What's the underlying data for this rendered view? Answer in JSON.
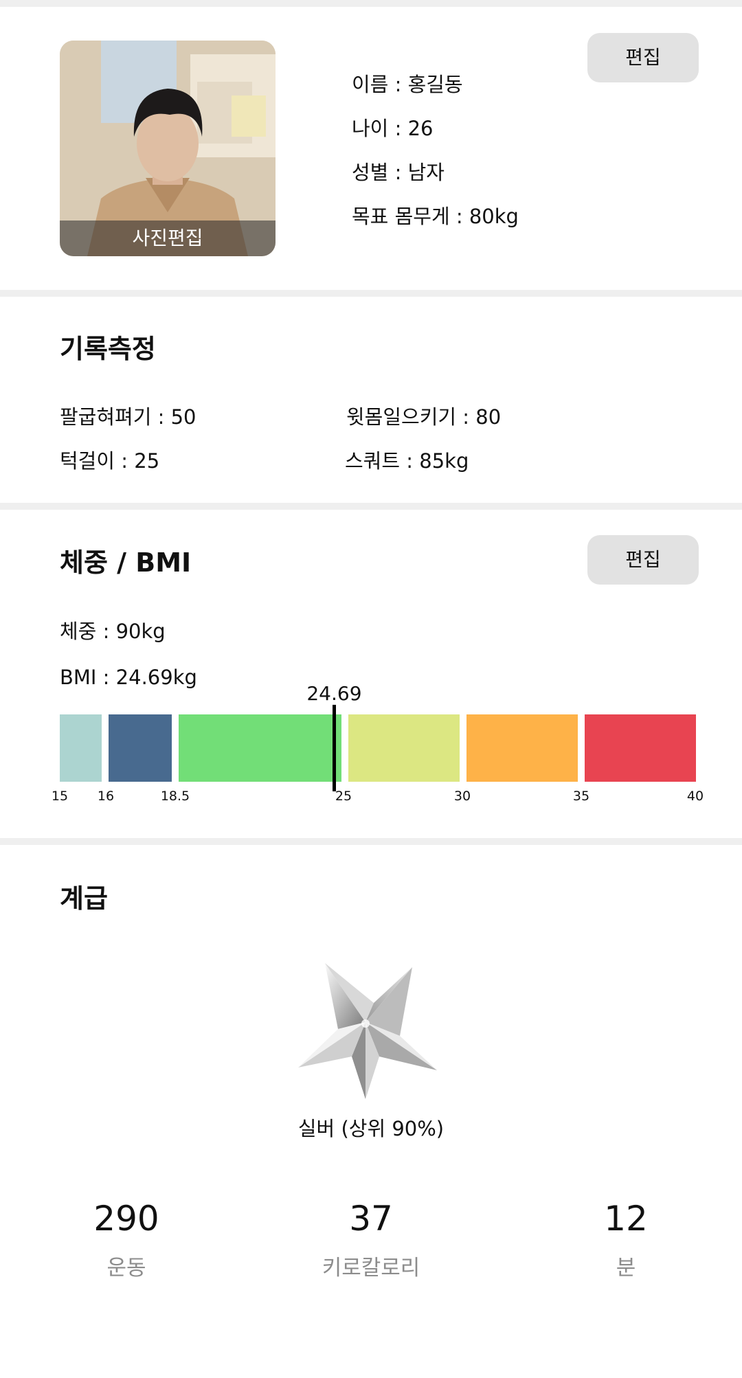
{
  "profile": {
    "photo_edit_label": "사진편집",
    "edit_label": "편집",
    "name_line": "이름 : 홍길동",
    "age_line": "나이 : 26",
    "gender_line": "성별 : 남자",
    "goal_line": "목표 몸무게 : 80kg"
  },
  "records": {
    "title": "기록측정",
    "pushups": "팔굽혀펴기 : 50",
    "situps": "윗몸일으키기 : 80",
    "pullups": "턱걸이 : 25",
    "squat": "스쿼트 : 85kg"
  },
  "weight_bmi": {
    "title": "체중 / BMI",
    "edit_label": "편집",
    "weight_line": "체중 : 90kg",
    "bmi_line": "BMI : 24.69kg",
    "bmi_value": 24.69,
    "bmi_value_label": "24.69",
    "scale_ticks": [
      "15",
      "16",
      "18.5",
      "25",
      "30",
      "35",
      "40"
    ],
    "segment_colors": [
      "#acd4d0",
      "#486a8f",
      "#72de77",
      "#dce782",
      "#feb248",
      "#e84451"
    ]
  },
  "grade": {
    "title": "계급",
    "icon": "silver-star-icon",
    "rank_label": "실버 (상위 90%)",
    "stats": [
      {
        "value": "290",
        "label": "운동"
      },
      {
        "value": "37",
        "label": "키로칼로리"
      },
      {
        "value": "12",
        "label": "분"
      }
    ]
  }
}
